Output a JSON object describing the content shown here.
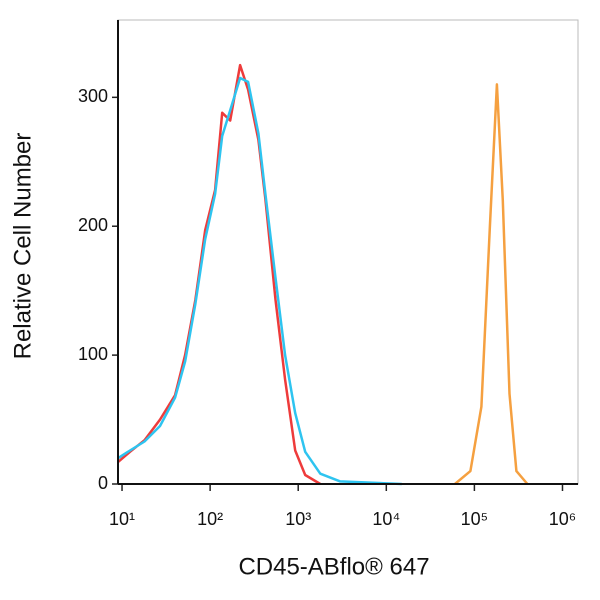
{
  "chart_data": {
    "type": "line",
    "xlabel": "CD45-ABflo® 647",
    "ylabel": "Relative Cell Number",
    "xscale": "log",
    "xlim": [
      9,
      1500000
    ],
    "ylim": [
      0,
      360
    ],
    "xticks": [
      {
        "value": 10,
        "label": "10¹"
      },
      {
        "value": 100,
        "label": "10²"
      },
      {
        "value": 1000,
        "label": "10³"
      },
      {
        "value": 10000,
        "label": "10⁴"
      },
      {
        "value": 100000,
        "label": "10⁵"
      },
      {
        "value": 1000000,
        "label": "10⁶"
      }
    ],
    "yticks": [
      0,
      100,
      200,
      300
    ],
    "series": [
      {
        "color": "#ee3b3b",
        "x": [
          9,
          12.3,
          18,
          27,
          40,
          52,
          68,
          88,
          114,
          137,
          169,
          219,
          270,
          353,
          424,
          553,
          710,
          924,
          1200,
          1780
        ],
        "values": [
          17,
          25,
          34,
          50,
          69,
          100,
          143,
          197,
          228,
          288,
          282,
          325,
          306,
          267,
          221,
          143,
          81,
          26,
          7,
          0
        ]
      },
      {
        "color": "#2ec4f0",
        "x": [
          9,
          12.3,
          18,
          27,
          40,
          52,
          68,
          88,
          114,
          137,
          169,
          219,
          270,
          353,
          424,
          553,
          710,
          924,
          1200,
          1780,
          3000,
          15000
        ],
        "values": [
          20,
          26,
          33,
          45,
          67,
          95,
          140,
          190,
          225,
          270,
          290,
          315,
          312,
          272,
          225,
          160,
          100,
          55,
          25,
          8,
          2,
          0
        ]
      },
      {
        "color": "#f5a040",
        "x": [
          60000,
          90000,
          120000,
          150000,
          180000,
          210000,
          250000,
          300000,
          400000
        ],
        "values": [
          0,
          10,
          60,
          200,
          310,
          220,
          70,
          10,
          0
        ]
      }
    ]
  }
}
